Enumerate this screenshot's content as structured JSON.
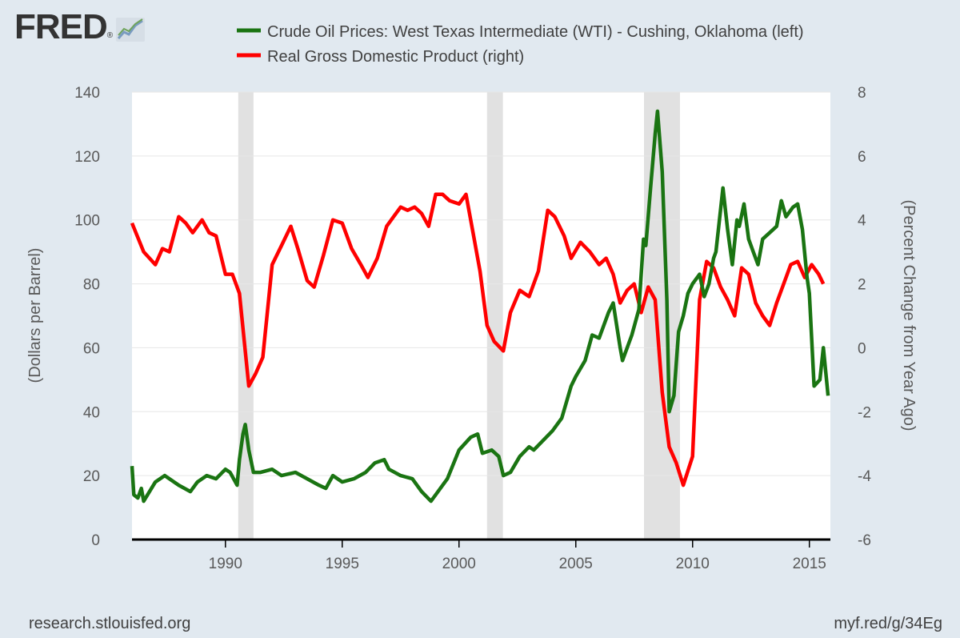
{
  "brand": {
    "logo_text": "FRED",
    "registered_mark": "®",
    "logo_icon": "trend-chart-icon"
  },
  "footer": {
    "source": "research.stlouisfed.org",
    "short_link": "myf.red/g/34Eg"
  },
  "colors": {
    "oil": "#1a7412",
    "gdp": "#ff0000",
    "recession": "#e1e1e1",
    "plot_bg": "#ffffff",
    "page_bg": "#e1e9f0"
  },
  "chart_data": {
    "type": "line",
    "legend": [
      {
        "name": "Crude Oil Prices: West Texas Intermediate (WTI) - Cushing, Oklahoma (left)",
        "color": "#1a7412"
      },
      {
        "name": "Real Gross Domestic Product (right)",
        "color": "#ff0000"
      }
    ],
    "ylabel_left": "(Dollars per Barrel)",
    "ylabel_right": "(Percent Change from Year Ago)",
    "xlim": [
      1986.0,
      2015.9
    ],
    "ylim_left": [
      0,
      140
    ],
    "ylim_right": [
      -6,
      8
    ],
    "x_ticks": [
      1990,
      1995,
      2000,
      2005,
      2010,
      2015
    ],
    "y_ticks_left": [
      0,
      20,
      40,
      60,
      80,
      100,
      120,
      140
    ],
    "y_ticks_right": [
      -6,
      -4,
      -2,
      0,
      2,
      4,
      6,
      8
    ],
    "recessions": [
      [
        1990.55,
        1991.2
      ],
      [
        2001.2,
        2001.88
      ],
      [
        2007.92,
        2009.46
      ]
    ],
    "series": [
      {
        "name": "Crude Oil Prices: West Texas Intermediate (WTI) - Cushing, Oklahoma",
        "axis": "left",
        "x": [
          1986.0,
          1986.08,
          1986.25,
          1986.4,
          1986.5,
          1986.75,
          1987.0,
          1987.4,
          1987.8,
          1988.0,
          1988.5,
          1988.8,
          1989.2,
          1989.6,
          1990.0,
          1990.2,
          1990.5,
          1990.6,
          1990.75,
          1990.85,
          1991.0,
          1991.2,
          1991.5,
          1992.0,
          1992.4,
          1993.0,
          1993.5,
          1994.0,
          1994.3,
          1994.6,
          1995.0,
          1995.5,
          1996.0,
          1996.4,
          1996.8,
          1997.0,
          1997.5,
          1998.0,
          1998.4,
          1998.8,
          1999.0,
          1999.5,
          2000.0,
          2000.5,
          2000.8,
          2001.0,
          2001.4,
          2001.7,
          2001.9,
          2002.2,
          2002.6,
          2003.0,
          2003.2,
          2003.6,
          2004.0,
          2004.4,
          2004.8,
          2005.0,
          2005.4,
          2005.7,
          2006.0,
          2006.4,
          2006.6,
          2006.9,
          2007.0,
          2007.4,
          2007.7,
          2007.9,
          2008.0,
          2008.2,
          2008.4,
          2008.5,
          2008.7,
          2008.9,
          2009.0,
          2009.2,
          2009.4,
          2009.6,
          2009.8,
          2010.0,
          2010.3,
          2010.5,
          2010.7,
          2010.9,
          2011.0,
          2011.3,
          2011.5,
          2011.7,
          2011.9,
          2012.0,
          2012.2,
          2012.4,
          2012.6,
          2012.8,
          2013.0,
          2013.3,
          2013.6,
          2013.8,
          2014.0,
          2014.3,
          2014.5,
          2014.7,
          2014.9,
          2015.0,
          2015.2,
          2015.45,
          2015.6,
          2015.8
        ],
        "values": [
          23,
          14,
          13,
          16,
          12,
          15,
          18,
          20,
          18,
          17,
          15,
          18,
          20,
          19,
          22,
          21,
          17,
          25,
          33,
          36,
          28,
          21,
          21,
          22,
          20,
          21,
          19,
          17,
          16,
          20,
          18,
          19,
          21,
          24,
          25,
          22,
          20,
          19,
          15,
          12,
          14,
          19,
          28,
          32,
          33,
          27,
          28,
          26,
          20,
          21,
          26,
          29,
          28,
          31,
          34,
          38,
          48,
          51,
          56,
          64,
          63,
          71,
          74,
          60,
          56,
          64,
          72,
          94,
          92,
          110,
          127,
          134,
          115,
          75,
          40,
          45,
          65,
          70,
          77,
          80,
          83,
          76,
          80,
          88,
          90,
          110,
          97,
          86,
          100,
          98,
          105,
          94,
          90,
          86,
          94,
          96,
          98,
          106,
          101,
          104,
          105,
          97,
          82,
          77,
          48,
          50,
          60,
          45
        ]
      },
      {
        "name": "Real Gross Domestic Product",
        "axis": "right",
        "x": [
          1986.0,
          1986.5,
          1987.0,
          1987.3,
          1987.6,
          1988.0,
          1988.3,
          1988.6,
          1989.0,
          1989.3,
          1989.6,
          1990.0,
          1990.3,
          1990.6,
          1991.0,
          1991.3,
          1991.6,
          1992.0,
          1992.4,
          1992.8,
          1993.1,
          1993.5,
          1993.8,
          1994.2,
          1994.6,
          1995.0,
          1995.4,
          1995.8,
          1996.1,
          1996.5,
          1996.9,
          1997.2,
          1997.5,
          1997.8,
          1998.1,
          1998.4,
          1998.7,
          1999.0,
          1999.3,
          1999.6,
          2000.0,
          2000.3,
          2000.6,
          2000.9,
          2001.2,
          2001.5,
          2001.9,
          2002.2,
          2002.6,
          2003.0,
          2003.4,
          2003.8,
          2004.1,
          2004.5,
          2004.8,
          2005.2,
          2005.6,
          2006.0,
          2006.3,
          2006.6,
          2006.9,
          2007.2,
          2007.5,
          2007.8,
          2008.1,
          2008.4,
          2008.7,
          2009.0,
          2009.3,
          2009.6,
          2010.0,
          2010.3,
          2010.6,
          2010.9,
          2011.2,
          2011.5,
          2011.8,
          2012.1,
          2012.4,
          2012.7,
          2013.0,
          2013.3,
          2013.6,
          2013.9,
          2014.2,
          2014.5,
          2014.8,
          2015.1,
          2015.4,
          2015.6
        ],
        "values": [
          3.9,
          3.0,
          2.6,
          3.1,
          3.0,
          4.1,
          3.9,
          3.6,
          4.0,
          3.6,
          3.5,
          2.3,
          2.3,
          1.7,
          -1.2,
          -0.8,
          -0.3,
          2.6,
          3.2,
          3.8,
          3.1,
          2.1,
          1.9,
          2.9,
          4.0,
          3.9,
          3.1,
          2.6,
          2.2,
          2.8,
          3.8,
          4.1,
          4.4,
          4.3,
          4.4,
          4.2,
          3.8,
          4.8,
          4.8,
          4.6,
          4.5,
          4.8,
          3.6,
          2.4,
          0.7,
          0.2,
          -0.1,
          1.1,
          1.8,
          1.6,
          2.4,
          4.3,
          4.1,
          3.5,
          2.8,
          3.3,
          3.0,
          2.6,
          2.8,
          2.3,
          1.4,
          1.8,
          2.0,
          1.1,
          1.9,
          1.5,
          -1.4,
          -3.1,
          -3.6,
          -4.3,
          -3.4,
          1.5,
          2.7,
          2.5,
          1.9,
          1.5,
          1.0,
          2.5,
          2.3,
          1.4,
          1.0,
          0.7,
          1.4,
          2.0,
          2.6,
          2.7,
          2.2,
          2.6,
          2.3,
          2.0
        ]
      }
    ]
  }
}
